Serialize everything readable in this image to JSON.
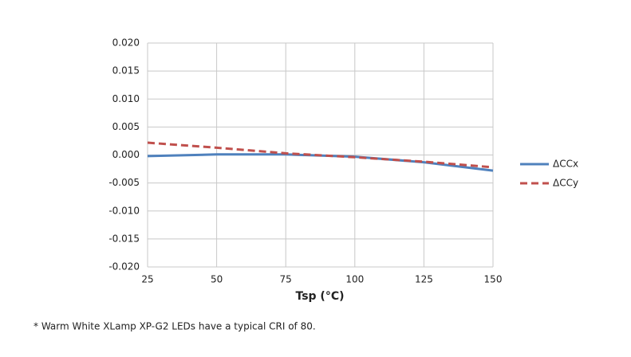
{
  "chart_data": {
    "type": "line",
    "x_label": "Tsp (°C)",
    "footnote": "* Warm White XLamp XP-G2 LEDs have a typical CRI of 80.",
    "x": [
      25,
      50,
      75,
      100,
      125,
      150
    ],
    "series": [
      {
        "name": "ΔCCx",
        "color": "#4f81bd",
        "line_style": "solid",
        "values": [
          -0.0002,
          0.0001,
          0.0001,
          -0.0003,
          -0.0013,
          -0.0028
        ]
      },
      {
        "name": "ΔCCy",
        "color": "#c0504d",
        "line_style": "dashed",
        "values": [
          0.0022,
          0.0013,
          0.0003,
          -0.0004,
          -0.0012,
          -0.0022
        ]
      }
    ],
    "xlim": [
      25,
      150
    ],
    "xticks": [
      25,
      50,
      75,
      100,
      125,
      150
    ],
    "ylim": [
      -0.02,
      0.02
    ],
    "yticks": [
      {
        "value": -0.02,
        "label": "-0.020"
      },
      {
        "value": -0.015,
        "label": "-0.015"
      },
      {
        "value": -0.01,
        "label": "-0.010"
      },
      {
        "value": -0.005,
        "label": "-0.005"
      },
      {
        "value": 0,
        "label": "0.000"
      },
      {
        "value": 0.005,
        "label": "0.005"
      },
      {
        "value": 0.01,
        "label": "0.010"
      },
      {
        "value": 0.015,
        "label": "0.015"
      },
      {
        "value": 0.02,
        "label": "0.020"
      }
    ],
    "grid": true,
    "legend": "right"
  }
}
